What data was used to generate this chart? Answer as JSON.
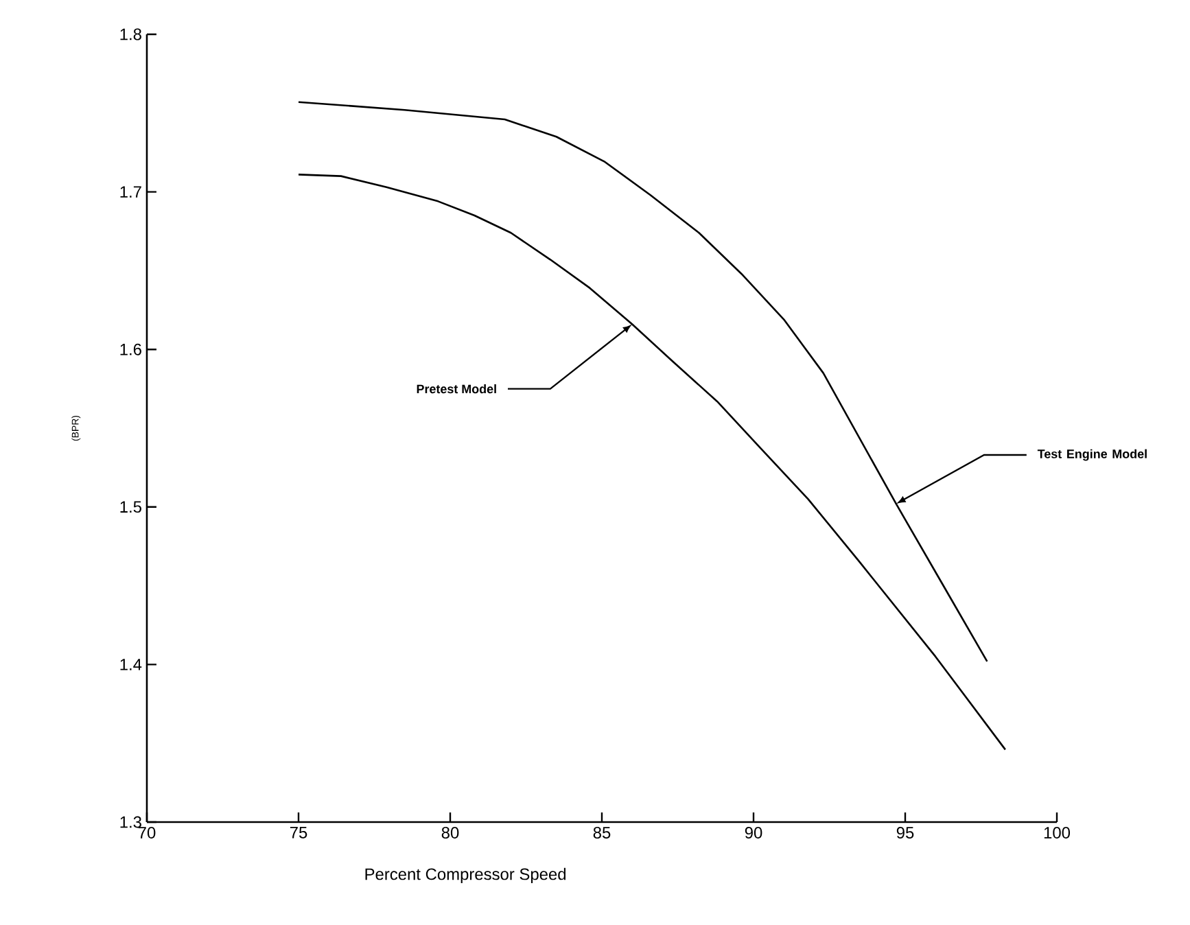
{
  "chart_data": {
    "type": "line",
    "xlabel": "Percent Compressor Speed",
    "ylabel": "(BPR)",
    "xlim": [
      70,
      100
    ],
    "ylim": [
      1.3,
      1.8
    ],
    "xticks": [
      70,
      75,
      80,
      85,
      90,
      95,
      100
    ],
    "yticks": [
      1.3,
      1.4,
      1.5,
      1.6,
      1.7,
      1.8
    ],
    "grid": false,
    "marker": "none",
    "line_style": "solid",
    "series": [
      {
        "color": "#000000",
        "x": [
          75,
          76.4,
          77.9,
          79.6,
          80.8,
          82.0,
          83.3,
          84.6,
          86.0,
          87.3,
          88.8,
          90.2,
          91.8,
          93.5,
          96.0,
          98.3
        ],
        "values": [
          1.711,
          1.71,
          1.703,
          1.694,
          1.685,
          1.674,
          1.657,
          1.639,
          1.616,
          1.593,
          1.567,
          1.538,
          1.505,
          1.465,
          1.405,
          1.346
        ]
      },
      {
        "color": "#000000",
        "x": [
          75,
          78.5,
          81.8,
          83.5,
          85.1,
          86.6,
          88.2,
          89.6,
          91.0,
          92.3,
          94.7,
          96.2,
          97.7
        ],
        "values": [
          1.757,
          1.752,
          1.746,
          1.735,
          1.719,
          1.698,
          1.674,
          1.648,
          1.619,
          1.585,
          1.502,
          1.452,
          1.402
        ]
      }
    ],
    "annotations": [
      {
        "text": "Pretest Model",
        "x": 86.0,
        "y": 1.616
      },
      {
        "text": "Test Engine Model",
        "x": 94.7,
        "y": 1.502
      }
    ]
  }
}
